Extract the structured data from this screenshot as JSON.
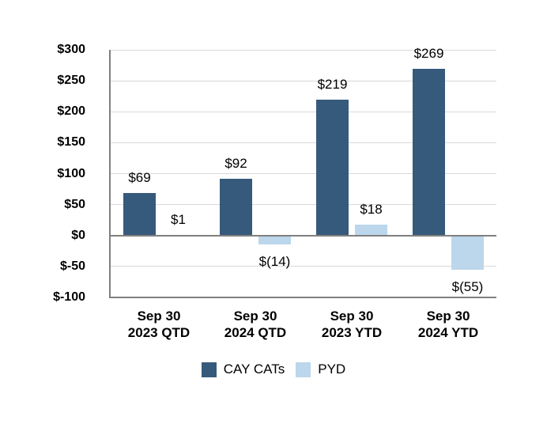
{
  "chart_data": {
    "type": "bar",
    "title": "",
    "categories": [
      [
        "Sep 30",
        "2023 QTD"
      ],
      [
        "Sep 30",
        "2024 QTD"
      ],
      [
        "Sep 30",
        "2023 YTD"
      ],
      [
        "Sep 30",
        "2024 YTD"
      ]
    ],
    "series": [
      {
        "name": "CAY CATs",
        "color": "#365a7b",
        "values": [
          69,
          92,
          219,
          269
        ],
        "data_labels": [
          "$69",
          "$92",
          "$219",
          "$269"
        ]
      },
      {
        "name": "PYD",
        "color": "#bcd6eb",
        "values": [
          1,
          -14,
          18,
          -55
        ],
        "data_labels": [
          "$1",
          "$(14)",
          "$18",
          "$(55)"
        ]
      }
    ],
    "ylim": [
      -100,
      300
    ],
    "ytick_step": 50,
    "ytick_labels": [
      "$300",
      "$250",
      "$200",
      "$150",
      "$100",
      "$50",
      "$0",
      "$-50",
      "$-100"
    ],
    "grid": true,
    "legend_position": "bottom",
    "colors": {
      "gridline": "#d9d9d9",
      "axis_line": "#808080",
      "label_text": "#000000"
    }
  }
}
